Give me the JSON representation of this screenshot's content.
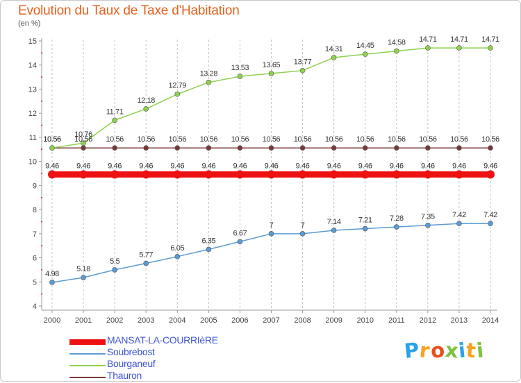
{
  "chart_data": {
    "type": "line",
    "title": "Evolution du Taux de Taxe d'Habitation",
    "subtitle": "(en %)",
    "ylim": [
      4,
      15
    ],
    "y_ticks": [
      "4",
      "5",
      "6",
      "7",
      "8",
      "9",
      "10",
      "11",
      "12",
      "13",
      "14",
      "15"
    ],
    "x": [
      "2000",
      "2001",
      "2002",
      "2003",
      "2004",
      "2005",
      "2006",
      "2007",
      "2008",
      "2009",
      "2010",
      "2011",
      "2012",
      "2013",
      "2014"
    ],
    "grid": "vertical-dashed",
    "legend_position": "bottom-left",
    "series": [
      {
        "name": "MANSAT-LA-COURRIèRE",
        "color": "#ee1111",
        "style": "thick",
        "values": [
          9.46,
          9.46,
          9.46,
          9.46,
          9.46,
          9.46,
          9.46,
          9.46,
          9.46,
          9.46,
          9.46,
          9.46,
          9.46,
          9.46,
          9.46
        ],
        "labels": [
          "9.46",
          "9.46",
          "9.46",
          "9.46",
          "9.46",
          "9.46",
          "9.46",
          "9.46",
          "9.46",
          "9.46",
          "9.46",
          "9.46",
          "9.46",
          "9.46",
          "9.46"
        ]
      },
      {
        "name": "Soubrebost",
        "color": "#5b9bd5",
        "style": "thin",
        "values": [
          4.98,
          5.18,
          5.5,
          5.77,
          6.05,
          6.35,
          6.67,
          7,
          7,
          7.14,
          7.21,
          7.28,
          7.35,
          7.42,
          7.42
        ],
        "labels": [
          "4.98",
          "5.18",
          "5.5",
          "5.77",
          "6.05",
          "6.35",
          "6.67",
          "7",
          "7",
          "7.14",
          "7.21",
          "7.28",
          "7.35",
          "7.42",
          "7.42"
        ]
      },
      {
        "name": "Bourganeuf",
        "color": "#8fd14f",
        "style": "thin",
        "values": [
          10.56,
          10.76,
          11.71,
          12.18,
          12.79,
          13.28,
          13.53,
          13.65,
          13.77,
          14.31,
          14.45,
          14.58,
          14.71,
          14.71,
          14.71
        ],
        "labels": [
          "10.56",
          "10.76",
          "11.71",
          "12.18",
          "12.79",
          "13.28",
          "13.53",
          "13.65",
          "13.77",
          "14.31",
          "14.45",
          "14.58",
          "14.71",
          "14.71",
          "14.71"
        ]
      },
      {
        "name": "Thauron",
        "color": "#7a3a3a",
        "style": "thin",
        "values": [
          10.56,
          10.56,
          10.56,
          10.56,
          10.56,
          10.56,
          10.56,
          10.56,
          10.56,
          10.56,
          10.56,
          10.56,
          10.56,
          10.56,
          10.56
        ],
        "labels": [
          "10.56",
          "10.56",
          "10.56",
          "10.56",
          "10.56",
          "10.56",
          "10.56",
          "10.56",
          "10.56",
          "10.56",
          "10.56",
          "10.56",
          "10.56",
          "10.56",
          "10.56"
        ]
      }
    ]
  },
  "logo": {
    "letters": [
      "P",
      "r",
      "o",
      "x",
      "i",
      "t",
      "i"
    ],
    "colors": [
      "#2aa3e6",
      "#f7a21b",
      "#e94e1b",
      "#7cc242",
      "#2aa3e6",
      "#f7a21b",
      "#7cc242"
    ]
  }
}
